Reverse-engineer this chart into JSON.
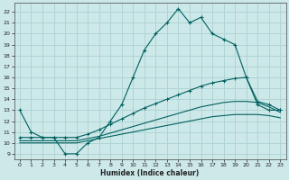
{
  "title": "",
  "xlabel": "Humidex (Indice chaleur)",
  "ylabel": "",
  "xlim": [
    -0.5,
    23.5
  ],
  "ylim": [
    8.5,
    22.8
  ],
  "bg_color": "#cde8e8",
  "grid_color": "#b0d4d4",
  "line_color": "#006060",
  "xticks": [
    0,
    1,
    2,
    3,
    4,
    5,
    6,
    7,
    8,
    9,
    10,
    11,
    12,
    13,
    14,
    15,
    16,
    17,
    18,
    19,
    20,
    21,
    22,
    23
  ],
  "yticks": [
    9,
    10,
    11,
    12,
    13,
    14,
    15,
    16,
    17,
    18,
    19,
    20,
    21,
    22
  ],
  "line1_x": [
    0,
    1,
    2,
    3,
    4,
    5,
    6,
    7,
    8,
    9,
    10,
    11,
    12,
    13,
    14,
    15,
    16,
    17,
    18,
    19,
    20,
    21,
    22,
    23
  ],
  "line1_y": [
    13,
    11,
    10.5,
    10.5,
    9,
    9,
    10,
    10.5,
    12,
    13.5,
    16,
    18.5,
    20,
    21,
    22.3,
    21,
    21.5,
    20,
    19.5,
    19,
    16,
    13.5,
    13,
    13
  ],
  "line2_x": [
    0,
    1,
    2,
    3,
    4,
    5,
    6,
    7,
    8,
    9,
    10,
    11,
    12,
    13,
    14,
    15,
    16,
    17,
    18,
    19,
    20,
    21,
    22,
    23
  ],
  "line2_y": [
    10.5,
    10.5,
    10.5,
    10.5,
    10.5,
    10.5,
    10.8,
    11.2,
    11.7,
    12.2,
    12.7,
    13.2,
    13.6,
    14.0,
    14.4,
    14.8,
    15.2,
    15.5,
    15.7,
    15.9,
    16.0,
    13.8,
    13.5,
    13.0
  ],
  "line3_x": [
    0,
    1,
    2,
    3,
    4,
    5,
    6,
    7,
    8,
    9,
    10,
    11,
    12,
    13,
    14,
    15,
    16,
    17,
    18,
    19,
    20,
    21,
    22,
    23
  ],
  "line3_y": [
    10.2,
    10.2,
    10.2,
    10.2,
    10.2,
    10.2,
    10.4,
    10.6,
    10.9,
    11.2,
    11.5,
    11.8,
    12.1,
    12.4,
    12.7,
    13.0,
    13.3,
    13.5,
    13.7,
    13.8,
    13.8,
    13.7,
    13.3,
    12.8
  ],
  "line4_x": [
    0,
    1,
    2,
    3,
    4,
    5,
    6,
    7,
    8,
    9,
    10,
    11,
    12,
    13,
    14,
    15,
    16,
    17,
    18,
    19,
    20,
    21,
    22,
    23
  ],
  "line4_y": [
    10.0,
    10.0,
    10.0,
    10.0,
    10.0,
    10.0,
    10.2,
    10.4,
    10.6,
    10.8,
    11.0,
    11.2,
    11.4,
    11.6,
    11.8,
    12.0,
    12.2,
    12.4,
    12.5,
    12.6,
    12.6,
    12.6,
    12.5,
    12.3
  ]
}
